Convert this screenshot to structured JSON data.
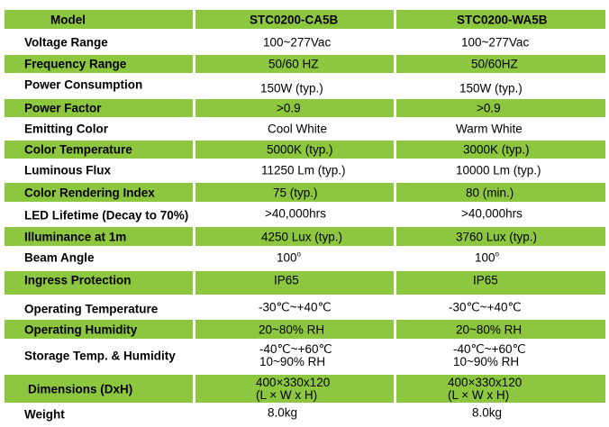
{
  "header": {
    "label": "Model",
    "model_a": "STC0200-CA5B",
    "model_b": "STC0200-WA5B"
  },
  "rows": [
    {
      "label": "Voltage Range",
      "a": "100~277Vac",
      "b": "100~277Vac"
    },
    {
      "label": "Frequency Range",
      "a": "50/60 HZ",
      "b": "50/60HZ"
    },
    {
      "label": "Power Consumption",
      "a": "150W (typ.)",
      "b": "150W (typ.)"
    },
    {
      "label": "Power Factor",
      "a": ">0.9",
      "b": ">0.9"
    },
    {
      "label": "Emitting Color",
      "a": "Cool White",
      "b": "Warm White"
    },
    {
      "label": "Color Temperature",
      "a": "5000K (typ.)",
      "b": "3000K (typ.)"
    },
    {
      "label": "Luminous Flux",
      "a": "11250 Lm (typ.)",
      "b": "10000 Lm (typ.)"
    },
    {
      "label": "Color Rendering Index",
      "a": "75 (typ.)",
      "b": "80 (min.)"
    },
    {
      "label": "LED Lifetime (Decay to 70%)",
      "a": ">40,000hrs",
      "b": ">40,000hrs"
    },
    {
      "label": "Illuminance at 1m",
      "a": "4250 Lux (typ.)",
      "b": "3760 Lux (typ.)"
    },
    {
      "label": "Beam Angle",
      "a": "100",
      "b": "100",
      "a_sup": "o",
      "b_sup": "o"
    },
    {
      "label": "Ingress Protection",
      "a": "IP65",
      "b": "IP65"
    },
    {
      "label": "Operating Temperature",
      "a": "-30℃~+40℃",
      "b": "-30℃~+40℃"
    },
    {
      "label": "Operating Humidity",
      "a": "20~80% RH",
      "b": "20~80% RH"
    },
    {
      "label": "Storage Temp. & Humidity",
      "a": "-40℃~+60℃",
      "a2": "10~90% RH",
      "b": "-40℃~+60℃",
      "b2": "10~90% RH"
    },
    {
      "label": "Dimensions (DxH)",
      "a": "400×330x120",
      "a2": "(L × W x H)",
      "b": "400×330x120",
      "b2": "(L × W x H)"
    },
    {
      "label": "Weight",
      "a": "8.0kg",
      "b": "8.0kg"
    }
  ]
}
